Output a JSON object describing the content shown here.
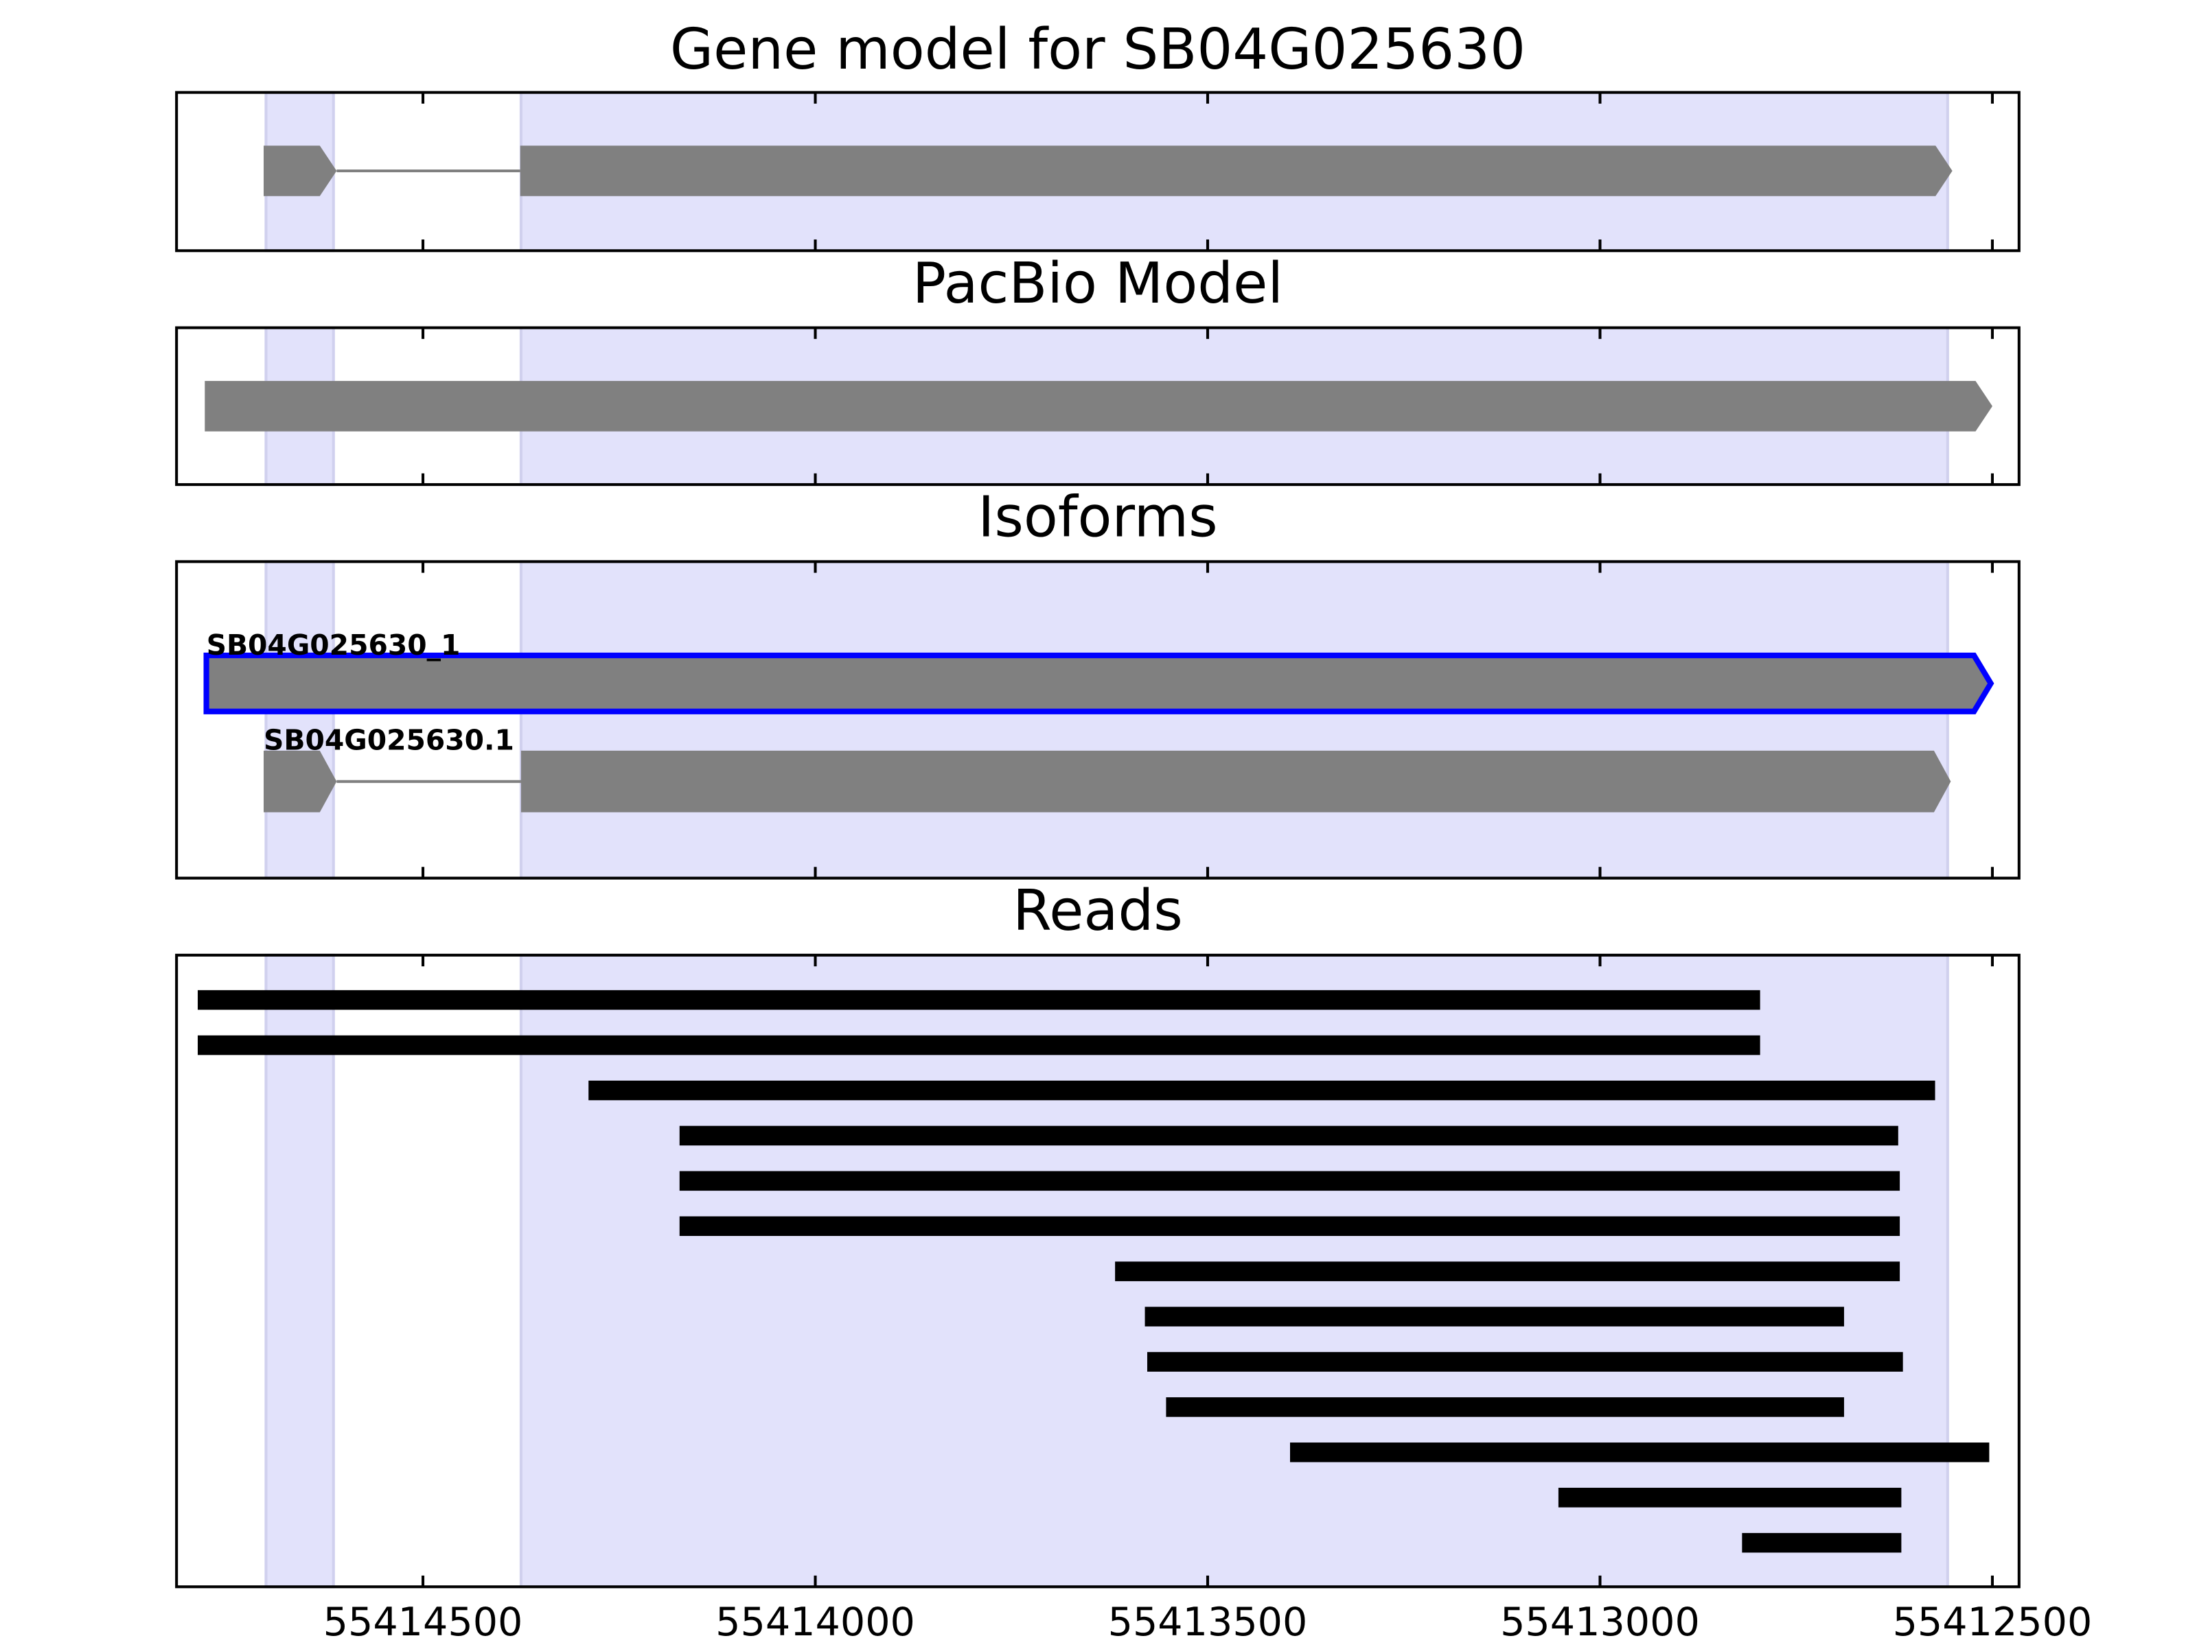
{
  "chart_data": {
    "type": "gene-tracks",
    "xlim": [
      55414814,
      55412466
    ],
    "xticks": [
      55414500,
      55414000,
      55413500,
      55413000,
      55412500
    ],
    "highlight_color": "#e2e2fb",
    "feature_color": "#808080",
    "read_color": "#000000",
    "selected_color": "#0000ff",
    "highlight_regions": [
      [
        55414700,
        55414614
      ],
      [
        55414375,
        55412557
      ]
    ],
    "panels": [
      {
        "title": "Gene model for SB04G025630",
        "features": [
          {
            "exons": [
              [
                55414703,
                55414610
              ],
              [
                55414376,
                55412551
              ]
            ]
          }
        ]
      },
      {
        "title": "PacBio Model",
        "features": [
          {
            "exons": [
              [
                55414778,
                55412500
              ]
            ]
          }
        ]
      },
      {
        "title": "Isoforms",
        "features": [
          {
            "name": "SB04G025630_1",
            "selected": true,
            "exons": [
              [
                55414776,
                55412502
              ]
            ]
          },
          {
            "name": "SB04G025630.1",
            "exons": [
              [
                55414703,
                55414610
              ],
              [
                55414375,
                55412553
              ]
            ]
          }
        ]
      },
      {
        "title": "Reads",
        "reads": [
          [
            55414787,
            55412796
          ],
          [
            55414787,
            55412796
          ],
          [
            55414289,
            55412573
          ],
          [
            55414173,
            55412620
          ],
          [
            55414173,
            55412618
          ],
          [
            55414173,
            55412618
          ],
          [
            55413618,
            55412618
          ],
          [
            55413580,
            55412689
          ],
          [
            55413577,
            55412614
          ],
          [
            55413553,
            55412689
          ],
          [
            55413395,
            55412504
          ],
          [
            55413053,
            55412616
          ],
          [
            55412819,
            55412616
          ]
        ]
      }
    ]
  }
}
